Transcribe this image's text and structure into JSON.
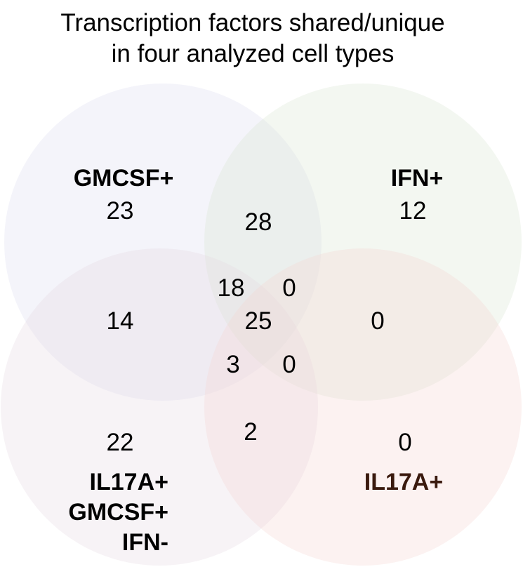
{
  "title": {
    "line1": "Transcription factors shared/unique",
    "line2": "in four analyzed cell types"
  },
  "sets": {
    "gmcsf": {
      "label": "GMCSF+",
      "color": "#d9dbee"
    },
    "ifn": {
      "label": "IFN+",
      "color": "#d8e6d2"
    },
    "triple": {
      "label_lines": [
        "IL17A+",
        "GMCSF+",
        "IFN-"
      ],
      "color": "#e4d6e2"
    },
    "il17a": {
      "label": "IL17A+",
      "color": "#f6d4d2",
      "label_color": "#3a1a0e"
    }
  },
  "counts": {
    "gmcsf_only": "23",
    "ifn_only": "12",
    "triple_only": "22",
    "il17a_only": "0",
    "gmcsf_ifn": "28",
    "gmcsf_triple": "14",
    "ifn_il17a": "0",
    "triple_il17a": "2",
    "gmcsf_ifn_triple": "18",
    "gmcsf_ifn_il17a": "0",
    "gmcsf_triple_il17a": "3",
    "ifn_triple_il17a": "0",
    "all_four": "25"
  }
}
